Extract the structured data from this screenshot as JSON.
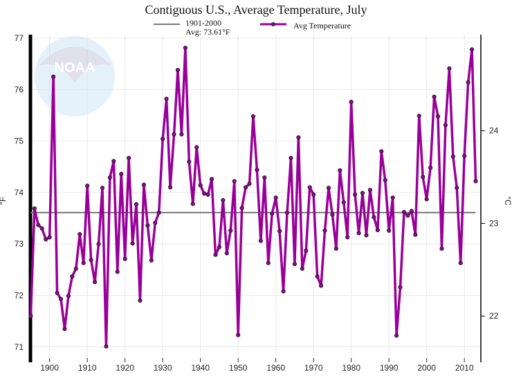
{
  "chart_data": {
    "type": "line",
    "title": "Contiguous U.S., Average Temperature, July",
    "ylabel": "°F",
    "ylabel_right": "°C",
    "xlim": [
      1895,
      2013
    ],
    "ylim": [
      71,
      77
    ],
    "ylim_right_ticks": [
      22,
      23,
      24
    ],
    "x_ticks": [
      1900,
      1910,
      1920,
      1930,
      1940,
      1950,
      1960,
      1970,
      1980,
      1990,
      2000,
      2010
    ],
    "y_ticks": [
      71,
      72,
      73,
      74,
      75,
      76,
      77
    ],
    "grid": true,
    "legend_position": "top",
    "reference_line": {
      "label_line1": "1901-2000",
      "label_line2": "Avg: 73.61°F",
      "value": 73.61,
      "color": "#777777"
    },
    "series": [
      {
        "name": "Avg Temperature",
        "color": "#990099",
        "x": [
          1895,
          1896,
          1897,
          1898,
          1899,
          1900,
          1901,
          1902,
          1903,
          1904,
          1905,
          1906,
          1907,
          1908,
          1909,
          1910,
          1911,
          1912,
          1913,
          1914,
          1915,
          1916,
          1917,
          1918,
          1919,
          1920,
          1921,
          1922,
          1923,
          1924,
          1925,
          1926,
          1927,
          1928,
          1929,
          1930,
          1931,
          1932,
          1933,
          1934,
          1935,
          1936,
          1937,
          1938,
          1939,
          1940,
          1941,
          1942,
          1943,
          1944,
          1945,
          1946,
          1947,
          1948,
          1949,
          1950,
          1951,
          1952,
          1953,
          1954,
          1955,
          1956,
          1957,
          1958,
          1959,
          1960,
          1961,
          1962,
          1963,
          1964,
          1965,
          1966,
          1967,
          1968,
          1969,
          1970,
          1971,
          1972,
          1973,
          1974,
          1975,
          1976,
          1977,
          1978,
          1979,
          1980,
          1981,
          1982,
          1983,
          1984,
          1985,
          1986,
          1987,
          1988,
          1989,
          1990,
          1991,
          1992,
          1993,
          1994,
          1995,
          1996,
          1997,
          1998,
          1999,
          2000,
          2001,
          2002,
          2003,
          2004,
          2005,
          2006,
          2007,
          2008,
          2009,
          2010,
          2011,
          2012,
          2013
        ],
        "values": [
          71.6,
          73.69,
          73.37,
          73.3,
          73.09,
          73.13,
          76.25,
          72.05,
          71.93,
          71.35,
          71.99,
          72.37,
          72.52,
          73.19,
          72.63,
          74.13,
          72.69,
          72.26,
          73.0,
          74.09,
          71.01,
          74.29,
          74.61,
          72.46,
          74.36,
          72.71,
          74.67,
          73.01,
          73.77,
          71.9,
          74.15,
          73.36,
          72.68,
          73.41,
          73.61,
          75.04,
          75.82,
          74.1,
          75.13,
          76.38,
          75.13,
          76.81,
          74.6,
          73.78,
          74.88,
          74.14,
          73.98,
          73.96,
          74.26,
          72.79,
          72.94,
          73.85,
          72.82,
          73.26,
          74.22,
          71.23,
          73.7,
          74.1,
          74.17,
          75.48,
          74.44,
          73.06,
          74.29,
          72.63,
          73.59,
          73.9,
          73.25,
          72.08,
          73.61,
          74.67,
          72.61,
          75.07,
          72.52,
          72.87,
          74.1,
          73.96,
          72.37,
          72.19,
          73.26,
          74.09,
          73.57,
          72.91,
          74.43,
          73.81,
          73.13,
          75.76,
          73.96,
          73.21,
          73.99,
          73.17,
          74.05,
          73.52,
          73.27,
          74.8,
          74.24,
          73.26,
          73.9,
          71.22,
          72.16,
          73.62,
          73.55,
          73.64,
          73.18,
          75.49,
          74.3,
          73.87,
          74.48,
          75.86,
          75.48,
          72.91,
          75.31,
          76.41,
          74.7,
          74.09,
          72.63,
          74.71,
          76.14,
          76.78,
          74.22
        ]
      }
    ]
  },
  "watermark": {
    "text": "NOAA",
    "ring_text": "NATIONAL OCEANIC AND ATMOSPHERIC ADMINISTRATION · U.S. DEPARTMENT OF COMMERCE"
  }
}
